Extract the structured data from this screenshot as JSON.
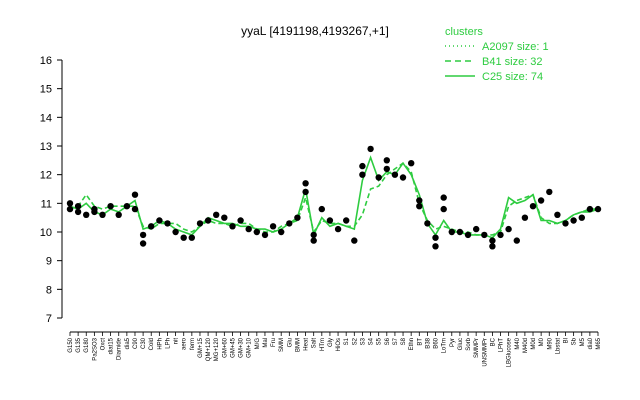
{
  "chart_data": {
    "type": "line",
    "title": "yyaL [4191198,4193267,+1]",
    "xlabel": "",
    "ylabel": "",
    "ylim": [
      7,
      16
    ],
    "yticks": [
      7,
      8,
      9,
      10,
      11,
      12,
      13,
      14,
      15,
      16
    ],
    "grid": false,
    "legend_placement": "top-right",
    "legend_title": "clusters",
    "legend": [
      {
        "label": "A2097 size: 1",
        "style": "dotted"
      },
      {
        "label": "B41 size: 32",
        "style": "dashed"
      },
      {
        "label": "C25 size: 74",
        "style": "solid"
      }
    ],
    "xtick_labels": [
      "G150",
      "G135",
      "G180",
      "Pa2SO3",
      "Oxct",
      "diat15",
      "Diamide",
      "dia5",
      "C90",
      "C30",
      "Cold",
      "HPh",
      "LPh",
      "nit",
      "aero",
      "ferm",
      "GM+15",
      "QM+120",
      "MG+120",
      "GM+60",
      "GM+45",
      "GM+30",
      "GM+10",
      "M/G",
      "Mal",
      "Fru",
      "SMM",
      "Glu",
      "BMM",
      "Heat",
      "Salt",
      "HTm",
      "Gly",
      "HiOs",
      "S1",
      "S2",
      "S3",
      "S4",
      "S5",
      "S6",
      "S7",
      "S8",
      "Ethn",
      "BT",
      "B38",
      "B60",
      "LoTm",
      "Pyr",
      "Gluc",
      "Sorb",
      "SMMPr",
      "UNSMMPr",
      "BC",
      "LPhT",
      "LBGlucose",
      "M40",
      "M40d",
      "M0d",
      "M0",
      "M90",
      "Lbstat",
      "Bl",
      "Sb",
      "M5",
      "dia0",
      "M65"
    ],
    "series": [
      {
        "cluster": "C25",
        "color": "#2ecc40",
        "values": [
          10.9,
          10.8,
          11.0,
          10.7,
          10.6,
          10.8,
          10.7,
          10.9,
          11.1,
          10.1,
          10.2,
          10.4,
          10.3,
          10.1,
          10.0,
          9.9,
          10.2,
          10.5,
          10.4,
          10.3,
          10.3,
          10.2,
          10.2,
          10.1,
          10.1,
          10.0,
          10.1,
          10.3,
          10.5,
          11.5,
          9.9,
          10.5,
          10.2,
          10.3,
          10.2,
          10.1,
          11.8,
          12.6,
          11.8,
          12.1,
          12.0,
          12.4,
          12.0,
          11.3,
          10.3,
          9.9,
          10.4,
          10.0,
          10.0,
          9.9,
          9.9,
          9.9,
          9.8,
          10.1,
          11.2,
          11.0,
          11.1,
          11.3,
          10.4,
          10.4,
          10.3,
          10.4,
          10.6,
          10.7,
          10.7,
          10.8
        ]
      },
      {
        "cluster": "B41",
        "color": "#2ecc40",
        "values": [
          10.8,
          10.9,
          11.3,
          10.9,
          10.8,
          10.9,
          10.9,
          10.9,
          10.9,
          10.2,
          10.1,
          10.3,
          10.3,
          10.3,
          10.1,
          10.0,
          10.2,
          10.4,
          10.3,
          10.3,
          10.2,
          10.3,
          10.3,
          10.1,
          10.0,
          10.0,
          10.2,
          10.3,
          10.4,
          11.2,
          10.0,
          10.4,
          10.3,
          10.3,
          10.2,
          10.2,
          10.6,
          11.5,
          11.6,
          12.0,
          12.2,
          12.4,
          12.1,
          11.0,
          10.4,
          10.1,
          10.2,
          10.1,
          10.0,
          10.0,
          9.9,
          9.9,
          9.9,
          10.0,
          10.9,
          11.1,
          11.2,
          11.3,
          10.5,
          10.3,
          10.3,
          10.4,
          10.6,
          10.7,
          10.8,
          10.8
        ]
      }
    ],
    "points": [
      {
        "x": 0,
        "y": 11.0
      },
      {
        "x": 0,
        "y": 10.8
      },
      {
        "x": 1,
        "y": 10.7
      },
      {
        "x": 1,
        "y": 10.9
      },
      {
        "x": 2,
        "y": 10.6
      },
      {
        "x": 3,
        "y": 10.8
      },
      {
        "x": 3,
        "y": 10.7
      },
      {
        "x": 4,
        "y": 10.6
      },
      {
        "x": 5,
        "y": 10.9
      },
      {
        "x": 6,
        "y": 10.6
      },
      {
        "x": 7,
        "y": 10.9
      },
      {
        "x": 8,
        "y": 11.3
      },
      {
        "x": 8,
        "y": 10.8
      },
      {
        "x": 9,
        "y": 9.6
      },
      {
        "x": 9,
        "y": 9.9
      },
      {
        "x": 10,
        "y": 10.2
      },
      {
        "x": 11,
        "y": 10.4
      },
      {
        "x": 12,
        "y": 10.3
      },
      {
        "x": 13,
        "y": 10.0
      },
      {
        "x": 14,
        "y": 9.8
      },
      {
        "x": 15,
        "y": 9.8
      },
      {
        "x": 16,
        "y": 10.3
      },
      {
        "x": 17,
        "y": 10.4
      },
      {
        "x": 18,
        "y": 10.6
      },
      {
        "x": 19,
        "y": 10.5
      },
      {
        "x": 20,
        "y": 10.2
      },
      {
        "x": 21,
        "y": 10.4
      },
      {
        "x": 22,
        "y": 10.1
      },
      {
        "x": 23,
        "y": 10.0
      },
      {
        "x": 24,
        "y": 9.9
      },
      {
        "x": 25,
        "y": 10.2
      },
      {
        "x": 26,
        "y": 10.0
      },
      {
        "x": 27,
        "y": 10.3
      },
      {
        "x": 28,
        "y": 10.5
      },
      {
        "x": 29,
        "y": 11.7
      },
      {
        "x": 29,
        "y": 11.4
      },
      {
        "x": 30,
        "y": 9.7
      },
      {
        "x": 30,
        "y": 9.9
      },
      {
        "x": 31,
        "y": 10.8
      },
      {
        "x": 32,
        "y": 10.4
      },
      {
        "x": 33,
        "y": 10.1
      },
      {
        "x": 34,
        "y": 10.4
      },
      {
        "x": 35,
        "y": 9.7
      },
      {
        "x": 36,
        "y": 12.0
      },
      {
        "x": 36,
        "y": 12.3
      },
      {
        "x": 37,
        "y": 12.9
      },
      {
        "x": 38,
        "y": 11.9
      },
      {
        "x": 39,
        "y": 12.2
      },
      {
        "x": 39,
        "y": 12.5
      },
      {
        "x": 40,
        "y": 12.0
      },
      {
        "x": 41,
        "y": 11.9
      },
      {
        "x": 42,
        "y": 12.4
      },
      {
        "x": 43,
        "y": 11.1
      },
      {
        "x": 43,
        "y": 10.9
      },
      {
        "x": 44,
        "y": 10.3
      },
      {
        "x": 45,
        "y": 9.5
      },
      {
        "x": 45,
        "y": 9.8
      },
      {
        "x": 46,
        "y": 11.2
      },
      {
        "x": 46,
        "y": 10.8
      },
      {
        "x": 47,
        "y": 10.0
      },
      {
        "x": 48,
        "y": 10.0
      },
      {
        "x": 49,
        "y": 9.9
      },
      {
        "x": 50,
        "y": 10.1
      },
      {
        "x": 51,
        "y": 9.9
      },
      {
        "x": 52,
        "y": 9.5
      },
      {
        "x": 52,
        "y": 9.7
      },
      {
        "x": 53,
        "y": 9.9
      },
      {
        "x": 54,
        "y": 10.1
      },
      {
        "x": 55,
        "y": 9.7
      },
      {
        "x": 56,
        "y": 10.5
      },
      {
        "x": 57,
        "y": 10.9
      },
      {
        "x": 58,
        "y": 11.1
      },
      {
        "x": 59,
        "y": 11.4
      },
      {
        "x": 60,
        "y": 10.6
      },
      {
        "x": 61,
        "y": 10.3
      },
      {
        "x": 62,
        "y": 10.4
      },
      {
        "x": 63,
        "y": 10.5
      },
      {
        "x": 64,
        "y": 10.8
      },
      {
        "x": 65,
        "y": 10.8
      }
    ]
  }
}
